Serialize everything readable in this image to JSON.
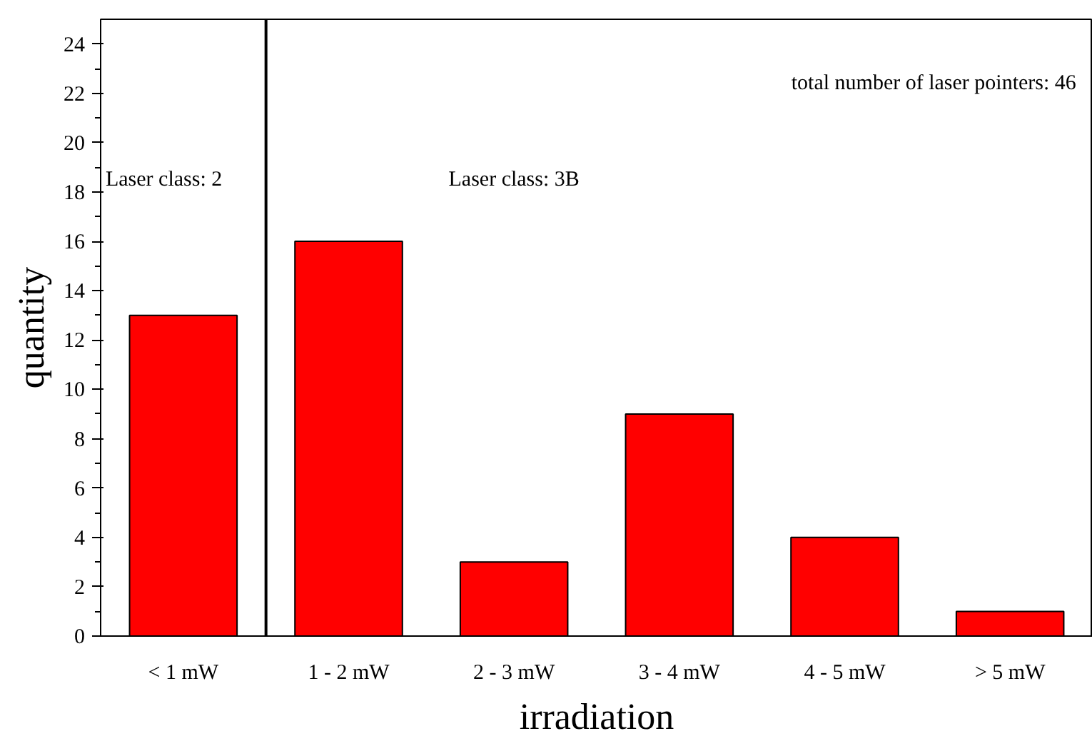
{
  "chart_data": {
    "type": "bar",
    "xlabel": "irradiation",
    "ylabel": "quantity",
    "categories": [
      "< 1 mW",
      "1 - 2 mW",
      "2 - 3 mW",
      "3 - 4 mW",
      "4 - 5 mW",
      "> 5 mW"
    ],
    "values": [
      13,
      16,
      3,
      9,
      4,
      1
    ],
    "color": "#ff0000",
    "ylim": [
      0,
      25
    ],
    "yticks": [
      0,
      2,
      4,
      6,
      8,
      10,
      12,
      14,
      16,
      18,
      20,
      22,
      24
    ],
    "grid": false,
    "annotations": [
      "Laser class: 2",
      "Laser class: 3B",
      "total number of laser pointers: 46"
    ]
  }
}
